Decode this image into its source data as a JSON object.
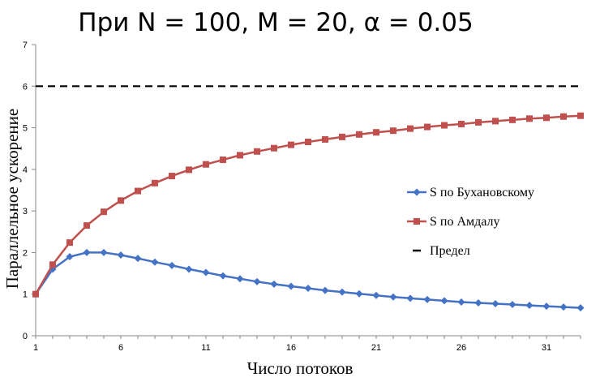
{
  "chart_data": {
    "type": "line",
    "title": "При N = 100, M = 20, α = 0.05",
    "xlabel": "Число потоков",
    "ylabel": "Параллельное ускорение",
    "xlim": [
      1,
      33
    ],
    "ylim": [
      0,
      7
    ],
    "x_ticks": [
      1,
      6,
      11,
      16,
      21,
      26,
      31
    ],
    "y_ticks": [
      0,
      1,
      2,
      3,
      4,
      5,
      6,
      7
    ],
    "grid": false,
    "legend_position": "right",
    "x": [
      1,
      2,
      3,
      4,
      5,
      6,
      7,
      8,
      9,
      10,
      11,
      12,
      13,
      14,
      15,
      16,
      17,
      18,
      19,
      20,
      21,
      22,
      23,
      24,
      25,
      26,
      27,
      28,
      29,
      30,
      31,
      32,
      33
    ],
    "series": [
      {
        "name": "S по Бухановскому",
        "color": "#4472C4",
        "marker": "diamond",
        "values": [
          1.0,
          1.6,
          1.9,
          2.0,
          2.0,
          1.94,
          1.86,
          1.77,
          1.69,
          1.6,
          1.52,
          1.44,
          1.37,
          1.3,
          1.24,
          1.19,
          1.14,
          1.09,
          1.05,
          1.01,
          0.97,
          0.93,
          0.9,
          0.87,
          0.84,
          0.81,
          0.79,
          0.77,
          0.75,
          0.73,
          0.71,
          0.69,
          0.67
        ]
      },
      {
        "name": "S по Амдалу",
        "color": "#C0504D",
        "marker": "square",
        "values": [
          1.0,
          1.71,
          2.24,
          2.65,
          2.98,
          3.25,
          3.48,
          3.67,
          3.84,
          3.99,
          4.12,
          4.23,
          4.34,
          4.43,
          4.51,
          4.59,
          4.66,
          4.72,
          4.78,
          4.84,
          4.89,
          4.93,
          4.98,
          5.02,
          5.06,
          5.09,
          5.13,
          5.16,
          5.19,
          5.22,
          5.24,
          5.27,
          5.29
        ]
      },
      {
        "name": "Предел",
        "color": "#000000",
        "style": "dashed",
        "values": [
          6,
          6,
          6,
          6,
          6,
          6,
          6,
          6,
          6,
          6,
          6,
          6,
          6,
          6,
          6,
          6,
          6,
          6,
          6,
          6,
          6,
          6,
          6,
          6,
          6,
          6,
          6,
          6,
          6,
          6,
          6,
          6,
          6
        ]
      }
    ]
  }
}
